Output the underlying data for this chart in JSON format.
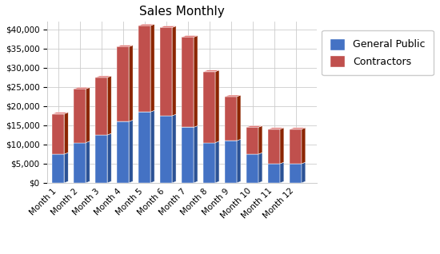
{
  "title": "Sales Monthly",
  "categories": [
    "Month 1",
    "Month 2",
    "Month 3",
    "Month 4",
    "Month 5",
    "Month 6",
    "Month 7",
    "Month 8",
    "Month 9",
    "Month 10",
    "Month 11",
    "Month 12"
  ],
  "general_public": [
    7500,
    10500,
    12500,
    16000,
    18500,
    17500,
    14500,
    10500,
    11000,
    7500,
    5000,
    5000
  ],
  "contractors": [
    10500,
    14000,
    15000,
    19500,
    22500,
    23000,
    23500,
    18500,
    11500,
    7000,
    9000,
    9000
  ],
  "gp_front": "#4472C4",
  "gp_side": "#2B5295",
  "gp_top": "#7AAEE8",
  "con_front": "#C0504D",
  "con_side": "#8B2500",
  "con_top": "#E07A78",
  "bg_color": "#FFFFFF",
  "grid_color": "#CCCCCC",
  "ylim": [
    0,
    42000
  ],
  "yticks": [
    0,
    5000,
    10000,
    15000,
    20000,
    25000,
    30000,
    35000,
    40000
  ],
  "legend_labels": [
    "General Public",
    "Contractors"
  ],
  "title_fontsize": 11,
  "tick_fontsize": 7.5,
  "legend_fontsize": 9,
  "bar_width": 0.55,
  "depth": 0.18
}
